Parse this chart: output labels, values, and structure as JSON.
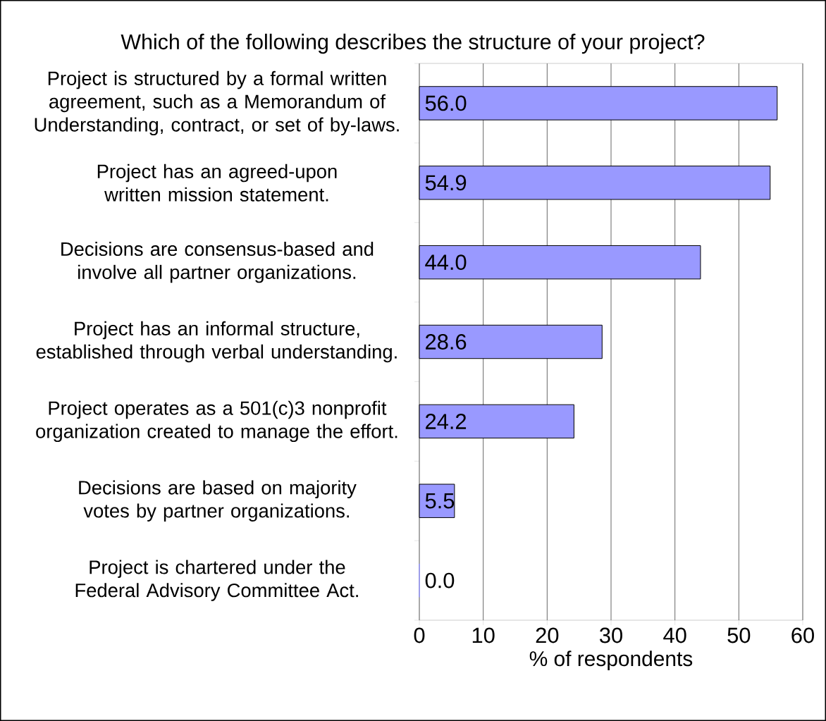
{
  "chart_data": {
    "type": "bar",
    "orientation": "horizontal",
    "title": "Which of the following describes the structure of your project?",
    "xlabel": "% of respondents",
    "categories": [
      "Project is structured by a formal written agreement, such as a Memorandum of Understanding, contract, or set of by-laws.",
      "Project has an agreed-upon written mission statement.",
      "Decisions are consensus-based and involve all partner organizations.",
      "Project has an informal structure, established through verbal understanding.",
      "Project operates as a 501(c)3 nonprofit organization created to manage the effort.",
      "Decisions are based on majority votes by partner organizations.",
      "Project is chartered under the Federal Advisory Committee Act."
    ],
    "values": [
      56.0,
      54.9,
      44.0,
      28.6,
      24.2,
      5.5,
      0.0
    ],
    "value_labels": [
      "56.0",
      "54.9",
      "44.0",
      "28.6",
      "24.2",
      "5.5",
      "0.0"
    ],
    "color": "#9999ff",
    "xlim": [
      0,
      60
    ],
    "xticks": [
      0,
      10,
      20,
      30,
      40,
      50,
      60
    ],
    "grid": "x"
  }
}
